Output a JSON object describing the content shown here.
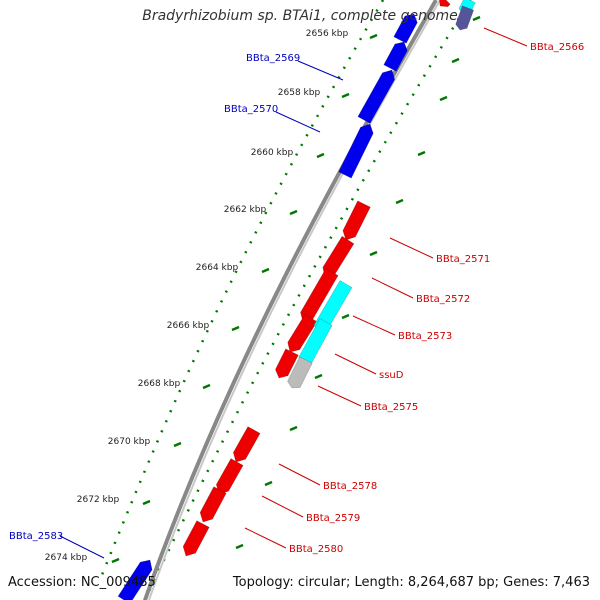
{
  "header": {
    "title": "Bradyrhizobium sp. BTAi1, complete genome"
  },
  "footer": {
    "accession": "Accession: NC_009485",
    "summary": "Topology: circular; Length: 8,264,687 bp; Genes: 7,463"
  },
  "colors": {
    "forward_gene": "#0000ee",
    "reverse_gene": "#ee0000",
    "rna_gene": "#00ffff",
    "other_gene": "#bbbbbb",
    "backbone": "#888888",
    "tick": "#007700"
  },
  "ruler": {
    "ticks": [
      {
        "pos_kbp": 2656,
        "label": "2656 kbp"
      },
      {
        "pos_kbp": 2658,
        "label": "2658 kbp"
      },
      {
        "pos_kbp": 2660,
        "label": "2660 kbp"
      },
      {
        "pos_kbp": 2662,
        "label": "2662 kbp"
      },
      {
        "pos_kbp": 2664,
        "label": "2664 kbp"
      },
      {
        "pos_kbp": 2666,
        "label": "2666 kbp"
      },
      {
        "pos_kbp": 2668,
        "label": "2668 kbp"
      },
      {
        "pos_kbp": 2670,
        "label": "2670 kbp"
      },
      {
        "pos_kbp": 2672,
        "label": "2672 kbp"
      },
      {
        "pos_kbp": 2674,
        "label": "2674 kbp"
      }
    ]
  },
  "genes": [
    {
      "name": "BBta_2566",
      "strand": "reverse"
    },
    {
      "name": "BBta_2569",
      "strand": "forward"
    },
    {
      "name": "BBta_2570",
      "strand": "forward"
    },
    {
      "name": "BBta_2571",
      "strand": "reverse"
    },
    {
      "name": "BBta_2572",
      "strand": "reverse"
    },
    {
      "name": "BBta_2573",
      "strand": "reverse"
    },
    {
      "name": "ssuD",
      "strand": "reverse"
    },
    {
      "name": "BBta_2575",
      "strand": "reverse"
    },
    {
      "name": "BBta_2578",
      "strand": "reverse"
    },
    {
      "name": "BBta_2579",
      "strand": "reverse"
    },
    {
      "name": "BBta_2580",
      "strand": "reverse"
    },
    {
      "name": "BBta_2583",
      "strand": "forward"
    }
  ]
}
